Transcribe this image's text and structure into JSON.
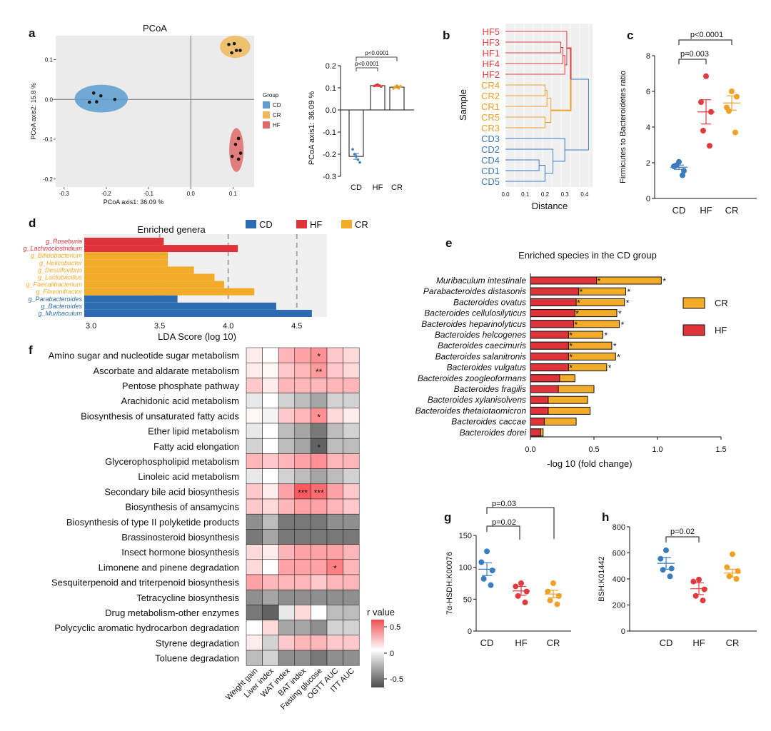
{
  "colors": {
    "cd": "#3b7bbf",
    "hf": "#e03c3f",
    "cr": "#f0a127",
    "cd_fill": "#5b9ed0",
    "hf_fill": "#df6a6a",
    "cr_fill": "#f0b95a",
    "hf_bar": "#dd3339",
    "cr_bar": "#f3ac2a",
    "cd_bar": "#2e6cb2"
  },
  "chart_data": [
    {
      "id": "a",
      "panel": "a",
      "type": "scatter",
      "title": "PCoA",
      "xlabel": "PCoA axis1: 36.09 %",
      "ylabel": "PCoA axis2: 15.8 %",
      "xticks": [
        "-0.3",
        "-0.2",
        "-0.1",
        "0.0",
        "0.1"
      ],
      "yticks": [
        "0.1",
        "0.0",
        "-0.1",
        "-0.2"
      ],
      "xlim": [
        -0.32,
        0.15
      ],
      "ylim": [
        -0.22,
        0.16
      ],
      "legend": {
        "title": "Group",
        "entries": [
          "CD",
          "CR",
          "HF"
        ]
      },
      "series": [
        {
          "name": "CD",
          "points": [
            [
              -0.23,
              0.016
            ],
            [
              -0.213,
              0.009
            ],
            [
              -0.24,
              -0.007
            ],
            [
              -0.223,
              -0.006
            ],
            [
              -0.18,
              0.0
            ]
          ],
          "ellipse": {
            "cx": -0.212,
            "cy": 0.002,
            "rx": 0.063,
            "ry": 0.035
          }
        },
        {
          "name": "CR",
          "points": [
            [
              0.09,
              0.138
            ],
            [
              0.103,
              0.14
            ],
            [
              0.108,
              0.123
            ],
            [
              0.097,
              0.117
            ],
            [
              0.117,
              0.123
            ]
          ],
          "ellipse": {
            "cx": 0.105,
            "cy": 0.132,
            "rx": 0.036,
            "ry": 0.028
          }
        },
        {
          "name": "HF",
          "points": [
            [
              0.113,
              -0.098
            ],
            [
              0.106,
              -0.113
            ],
            [
              0.118,
              -0.135
            ],
            [
              0.098,
              -0.143
            ],
            [
              0.113,
              -0.15
            ]
          ],
          "ellipse": {
            "cx": 0.108,
            "cy": -0.127,
            "rx": 0.017,
            "ry": 0.055
          }
        }
      ]
    },
    {
      "id": "a2",
      "panel": "a",
      "type": "bar",
      "ylabel": "PCoA axis1: 36.09 %",
      "categories": [
        "CD",
        "HF",
        "CR"
      ],
      "values": [
        -0.21,
        0.11,
        0.103
      ],
      "sem": [
        0.013,
        0.004,
        0.005
      ],
      "points": [
        [
          -0.178,
          -0.2,
          -0.21,
          -0.225,
          -0.237
        ],
        [
          0.108,
          0.112,
          0.115,
          0.109,
          0.106
        ],
        [
          0.097,
          0.105,
          0.11,
          0.098,
          0.107
        ]
      ],
      "yticks": [
        "0.2",
        "0.1",
        "0.0",
        "-0.1",
        "-0.2",
        "-0.3"
      ],
      "ylim": [
        -0.3,
        0.2
      ],
      "annotations": [
        "p<0.0001",
        "p<0.0001"
      ]
    },
    {
      "id": "b",
      "panel": "b",
      "type": "dendrogram",
      "xlabel": "Distance",
      "ylabel": "Sample",
      "xticks": [
        "0.0",
        "0.1",
        "0.2",
        "0.3",
        "0.4"
      ],
      "xlim": [
        0,
        0.44
      ],
      "leaves": [
        "HF5",
        "HF3",
        "HF1",
        "HF4",
        "HF2",
        "CR4",
        "CR2",
        "CR1",
        "CR5",
        "CR3",
        "CD3",
        "CD2",
        "CD4",
        "CD1",
        "CD5"
      ]
    },
    {
      "id": "c",
      "panel": "c",
      "type": "scatter",
      "ylabel": "Firmicutes to Bacteroidetes ratio",
      "categories": [
        "CD",
        "HF",
        "CR"
      ],
      "yticks": [
        "8",
        "6",
        "4",
        "2",
        "0"
      ],
      "ylim": [
        0,
        8
      ],
      "points": [
        [
          2.05,
          1.8,
          1.55,
          1.85,
          1.3
        ],
        [
          6.85,
          5.4,
          4.85,
          3.8,
          2.95
        ],
        [
          6.0,
          5.1,
          5.7,
          4.9,
          3.7
        ]
      ],
      "means": [
        1.75,
        4.85,
        5.35
      ],
      "sem": [
        0.12,
        0.68,
        0.4
      ],
      "annotations": [
        "p=0.003",
        "p<0.0001"
      ]
    },
    {
      "id": "d",
      "panel": "d",
      "type": "bar",
      "orientation": "horizontal",
      "title": "Enriched genera",
      "xlabel": "LDA Score (log 10)",
      "xticks": [
        "3.0",
        "3.5",
        "4.0",
        "4.5"
      ],
      "xlim": [
        2.95,
        4.72
      ],
      "legend": [
        "CD",
        "HF",
        "CR"
      ],
      "categories": [
        "g_Roseburia",
        "g_Lachnoclostridium",
        "g_Bifidobacterium",
        "g_Helicobacter",
        "g_Desulfovibrio",
        "g_Lactobacillus",
        "g_Faecalibacterium",
        "g_Flavonifractor",
        "g_Parabacteroides",
        "g_Bacteroides",
        "g_Muribaculum"
      ],
      "groups": [
        "HF",
        "HF",
        "CR",
        "CR",
        "CR",
        "CR",
        "CR",
        "CR",
        "CD",
        "CD",
        "CD"
      ],
      "values": [
        3.53,
        4.07,
        3.56,
        3.56,
        3.75,
        3.9,
        3.97,
        4.19,
        3.63,
        4.35,
        4.61
      ]
    },
    {
      "id": "e",
      "panel": "e",
      "type": "bar",
      "orientation": "horizontal",
      "title": "Enriched species in the CD group",
      "xlabel": "-log 10 (fold change)",
      "xticks": [
        "0.0",
        "0.5",
        "1.0",
        "1.5"
      ],
      "xlim": [
        0,
        1.5
      ],
      "legend": [
        "CR",
        "HF"
      ],
      "categories": [
        "Muribaculum intestinale",
        "Parabacteroides distasonis",
        "Bacteroides ovatus",
        "Bacteroides cellulosilyticus",
        "Bacteroides heparinolyticus",
        "Bacteroides helcogenes",
        "Bacteroides caecimuris",
        "Bacteroides salanitronis",
        "Bacteroides vulgatus",
        "Bacteroides zoogleoformans",
        "Bacteroides fragilis",
        "Bacteroides xylanisolvens",
        "Bacteroides thetaiotaomicron",
        "Bacteroides caccae",
        "Bacteroides dorei"
      ],
      "series": [
        {
          "name": "HF",
          "values": [
            0.52,
            0.38,
            0.36,
            0.35,
            0.34,
            0.3,
            0.3,
            0.3,
            0.3,
            0.23,
            0.22,
            0.14,
            0.14,
            0.11,
            0.08
          ]
        },
        {
          "name": "CR",
          "values": [
            1.03,
            0.75,
            0.74,
            0.68,
            0.7,
            0.57,
            0.64,
            0.67,
            0.6,
            0.35,
            0.5,
            0.45,
            0.47,
            0.36,
            0.1
          ]
        }
      ],
      "hf_star": [
        "*",
        "*",
        "*",
        "*",
        "*",
        "*",
        "*",
        "*",
        "*",
        "",
        "",
        "",
        "",
        "",
        ""
      ],
      "cr_star": [
        "*",
        "*",
        "*",
        "*",
        "*",
        "*",
        "*",
        "*",
        "*",
        "",
        "",
        "",
        "",
        "",
        ""
      ]
    },
    {
      "id": "f",
      "panel": "f",
      "type": "heatmap",
      "legend_title": "r value",
      "legend_ticks": [
        "0.5",
        "0",
        "-0.5"
      ],
      "columns": [
        "Weight gain",
        "Liver index",
        "WAT index",
        "BAT index",
        "Fasting glucose",
        "OGTT AUC",
        "ITT AUC"
      ],
      "rows": [
        "Amino sugar and nucleotide sugar metabolism",
        "Ascorbate and aldarate metabolism",
        "Pentose phosphate pathway",
        "Arachidonic acid metabolism",
        "Biosynthesis of unsaturated fatty acids",
        "Ether lipid metabolism",
        "Fatty acid elongation",
        "Glycerophospholipid metabolism",
        "Linoleic acid metabolism",
        "Secondary bile acid biosynthesis",
        "Biosynthesis of ansamycins",
        "Biosynthesis of type II polyketide products",
        "Brassinosteroid biosynthesis",
        "Insect hormone biosynthesis",
        "Limonene and pinene degradation",
        "Sesquiterpenoid and triterpenoid biosynthesis",
        "Tetracycline biosynthesis",
        "Drug metabolism-other enzymes",
        "Polycyclic aromatic hydrocarbon degradation",
        "Styrene degradation",
        "Toluene degradation"
      ],
      "values": [
        [
          0.1,
          0.0,
          0.4,
          0.5,
          0.6,
          0.3,
          0.2
        ],
        [
          0.1,
          0.05,
          0.3,
          0.4,
          0.55,
          0.3,
          0.2
        ],
        [
          0.3,
          0.1,
          0.4,
          0.4,
          0.4,
          0.4,
          0.4
        ],
        [
          -0.1,
          0.0,
          -0.2,
          -0.3,
          -0.4,
          -0.2,
          -0.2
        ],
        [
          0.05,
          -0.05,
          0.3,
          0.4,
          0.6,
          0.2,
          0.1
        ],
        [
          -0.1,
          0.0,
          -0.3,
          -0.4,
          -0.6,
          -0.3,
          -0.2
        ],
        [
          -0.2,
          0.0,
          -0.3,
          -0.4,
          -0.7,
          -0.3,
          -0.3
        ],
        [
          0.4,
          0.3,
          0.4,
          0.5,
          0.6,
          0.4,
          0.4
        ],
        [
          -0.1,
          0.0,
          -0.2,
          -0.3,
          -0.4,
          -0.3,
          -0.2
        ],
        [
          0.3,
          0.1,
          0.5,
          0.9,
          0.8,
          0.5,
          0.3
        ],
        [
          0.3,
          0.2,
          0.4,
          0.5,
          0.5,
          0.4,
          0.3
        ],
        [
          -0.5,
          -0.3,
          -0.6,
          -0.6,
          -0.6,
          -0.5,
          -0.5
        ],
        [
          -0.6,
          -0.4,
          -0.6,
          -0.6,
          -0.6,
          -0.6,
          -0.6
        ],
        [
          0.2,
          0.1,
          0.4,
          0.5,
          0.5,
          0.5,
          0.4
        ],
        [
          0.2,
          0.0,
          0.5,
          0.5,
          0.5,
          0.7,
          0.4
        ],
        [
          0.5,
          0.4,
          0.4,
          0.4,
          0.3,
          0.4,
          0.4
        ],
        [
          -0.5,
          -0.4,
          -0.5,
          -0.5,
          -0.5,
          -0.5,
          -0.5
        ],
        [
          -0.6,
          -0.7,
          -0.1,
          0.2,
          0.0,
          -0.3,
          -0.3
        ],
        [
          0.0,
          0.2,
          -0.4,
          -0.4,
          -0.5,
          -0.2,
          -0.2
        ],
        [
          0.1,
          -0.2,
          0.3,
          0.4,
          0.4,
          0.3,
          0.3
        ],
        [
          -0.3,
          -0.2,
          -0.5,
          -0.5,
          -0.6,
          -0.5,
          -0.5
        ]
      ],
      "stars": [
        [
          "",
          "",
          "",
          "",
          "*",
          "",
          ""
        ],
        [
          "",
          "",
          "",
          "",
          "**",
          "",
          ""
        ],
        [
          "",
          "",
          "",
          "",
          "",
          "",
          ""
        ],
        [
          "",
          "",
          "",
          "",
          "",
          "",
          ""
        ],
        [
          "",
          "",
          "",
          "",
          "*",
          "",
          ""
        ],
        [
          "",
          "",
          "",
          "",
          "",
          "",
          ""
        ],
        [
          "",
          "",
          "",
          "",
          "*",
          "",
          ""
        ],
        [
          "",
          "",
          "",
          "",
          "",
          "",
          ""
        ],
        [
          "",
          "",
          "",
          "",
          "",
          "",
          ""
        ],
        [
          "",
          "",
          "",
          "***",
          "***",
          "",
          ""
        ],
        [
          "",
          "",
          "",
          "",
          "",
          "",
          ""
        ],
        [
          "",
          "",
          "",
          "",
          "",
          "",
          ""
        ],
        [
          "",
          "",
          "",
          "",
          "",
          "",
          ""
        ],
        [
          "",
          "",
          "",
          "",
          "",
          "",
          ""
        ],
        [
          "",
          "",
          "",
          "",
          "",
          "*",
          ""
        ],
        [
          "",
          "",
          "",
          "",
          "",
          "",
          ""
        ],
        [
          "",
          "",
          "",
          "",
          "",
          "",
          ""
        ],
        [
          "",
          "",
          "",
          "",
          "",
          "",
          ""
        ],
        [
          "",
          "",
          "",
          "",
          "",
          "",
          ""
        ],
        [
          "",
          "",
          "",
          "",
          "",
          "",
          ""
        ],
        [
          "",
          "",
          "",
          "",
          "",
          "",
          ""
        ]
      ]
    },
    {
      "id": "g",
      "panel": "g",
      "type": "scatter",
      "ylabel": "7α-HSDH:K00076",
      "categories": [
        "CD",
        "HF",
        "CR"
      ],
      "yticks": [
        "150",
        "100",
        "50",
        "0"
      ],
      "ylim": [
        0,
        150
      ],
      "points": [
        [
          125,
          108,
          95,
          82,
          72
        ],
        [
          75,
          70,
          62,
          55,
          45
        ],
        [
          75,
          62,
          55,
          48,
          42
        ]
      ],
      "means": [
        97,
        63,
        58
      ],
      "sem": [
        10,
        7,
        6
      ],
      "annotations": [
        "p=0.02",
        "p=0.03"
      ]
    },
    {
      "id": "h",
      "panel": "h",
      "type": "scatter",
      "ylabel": "BSH:K01442",
      "categories": [
        "CD",
        "HF",
        "CR"
      ],
      "yticks": [
        "800",
        "600",
        "400",
        "200",
        "0"
      ],
      "ylim": [
        0,
        800
      ],
      "points": [
        [
          620,
          555,
          480,
          470,
          420
        ],
        [
          395,
          380,
          320,
          270,
          235
        ],
        [
          590,
          490,
          460,
          420,
          400
        ]
      ],
      "means": [
        520,
        325,
        445
      ],
      "sem": [
        45,
        45,
        30
      ],
      "annotations": [
        "p=0.02"
      ]
    }
  ]
}
